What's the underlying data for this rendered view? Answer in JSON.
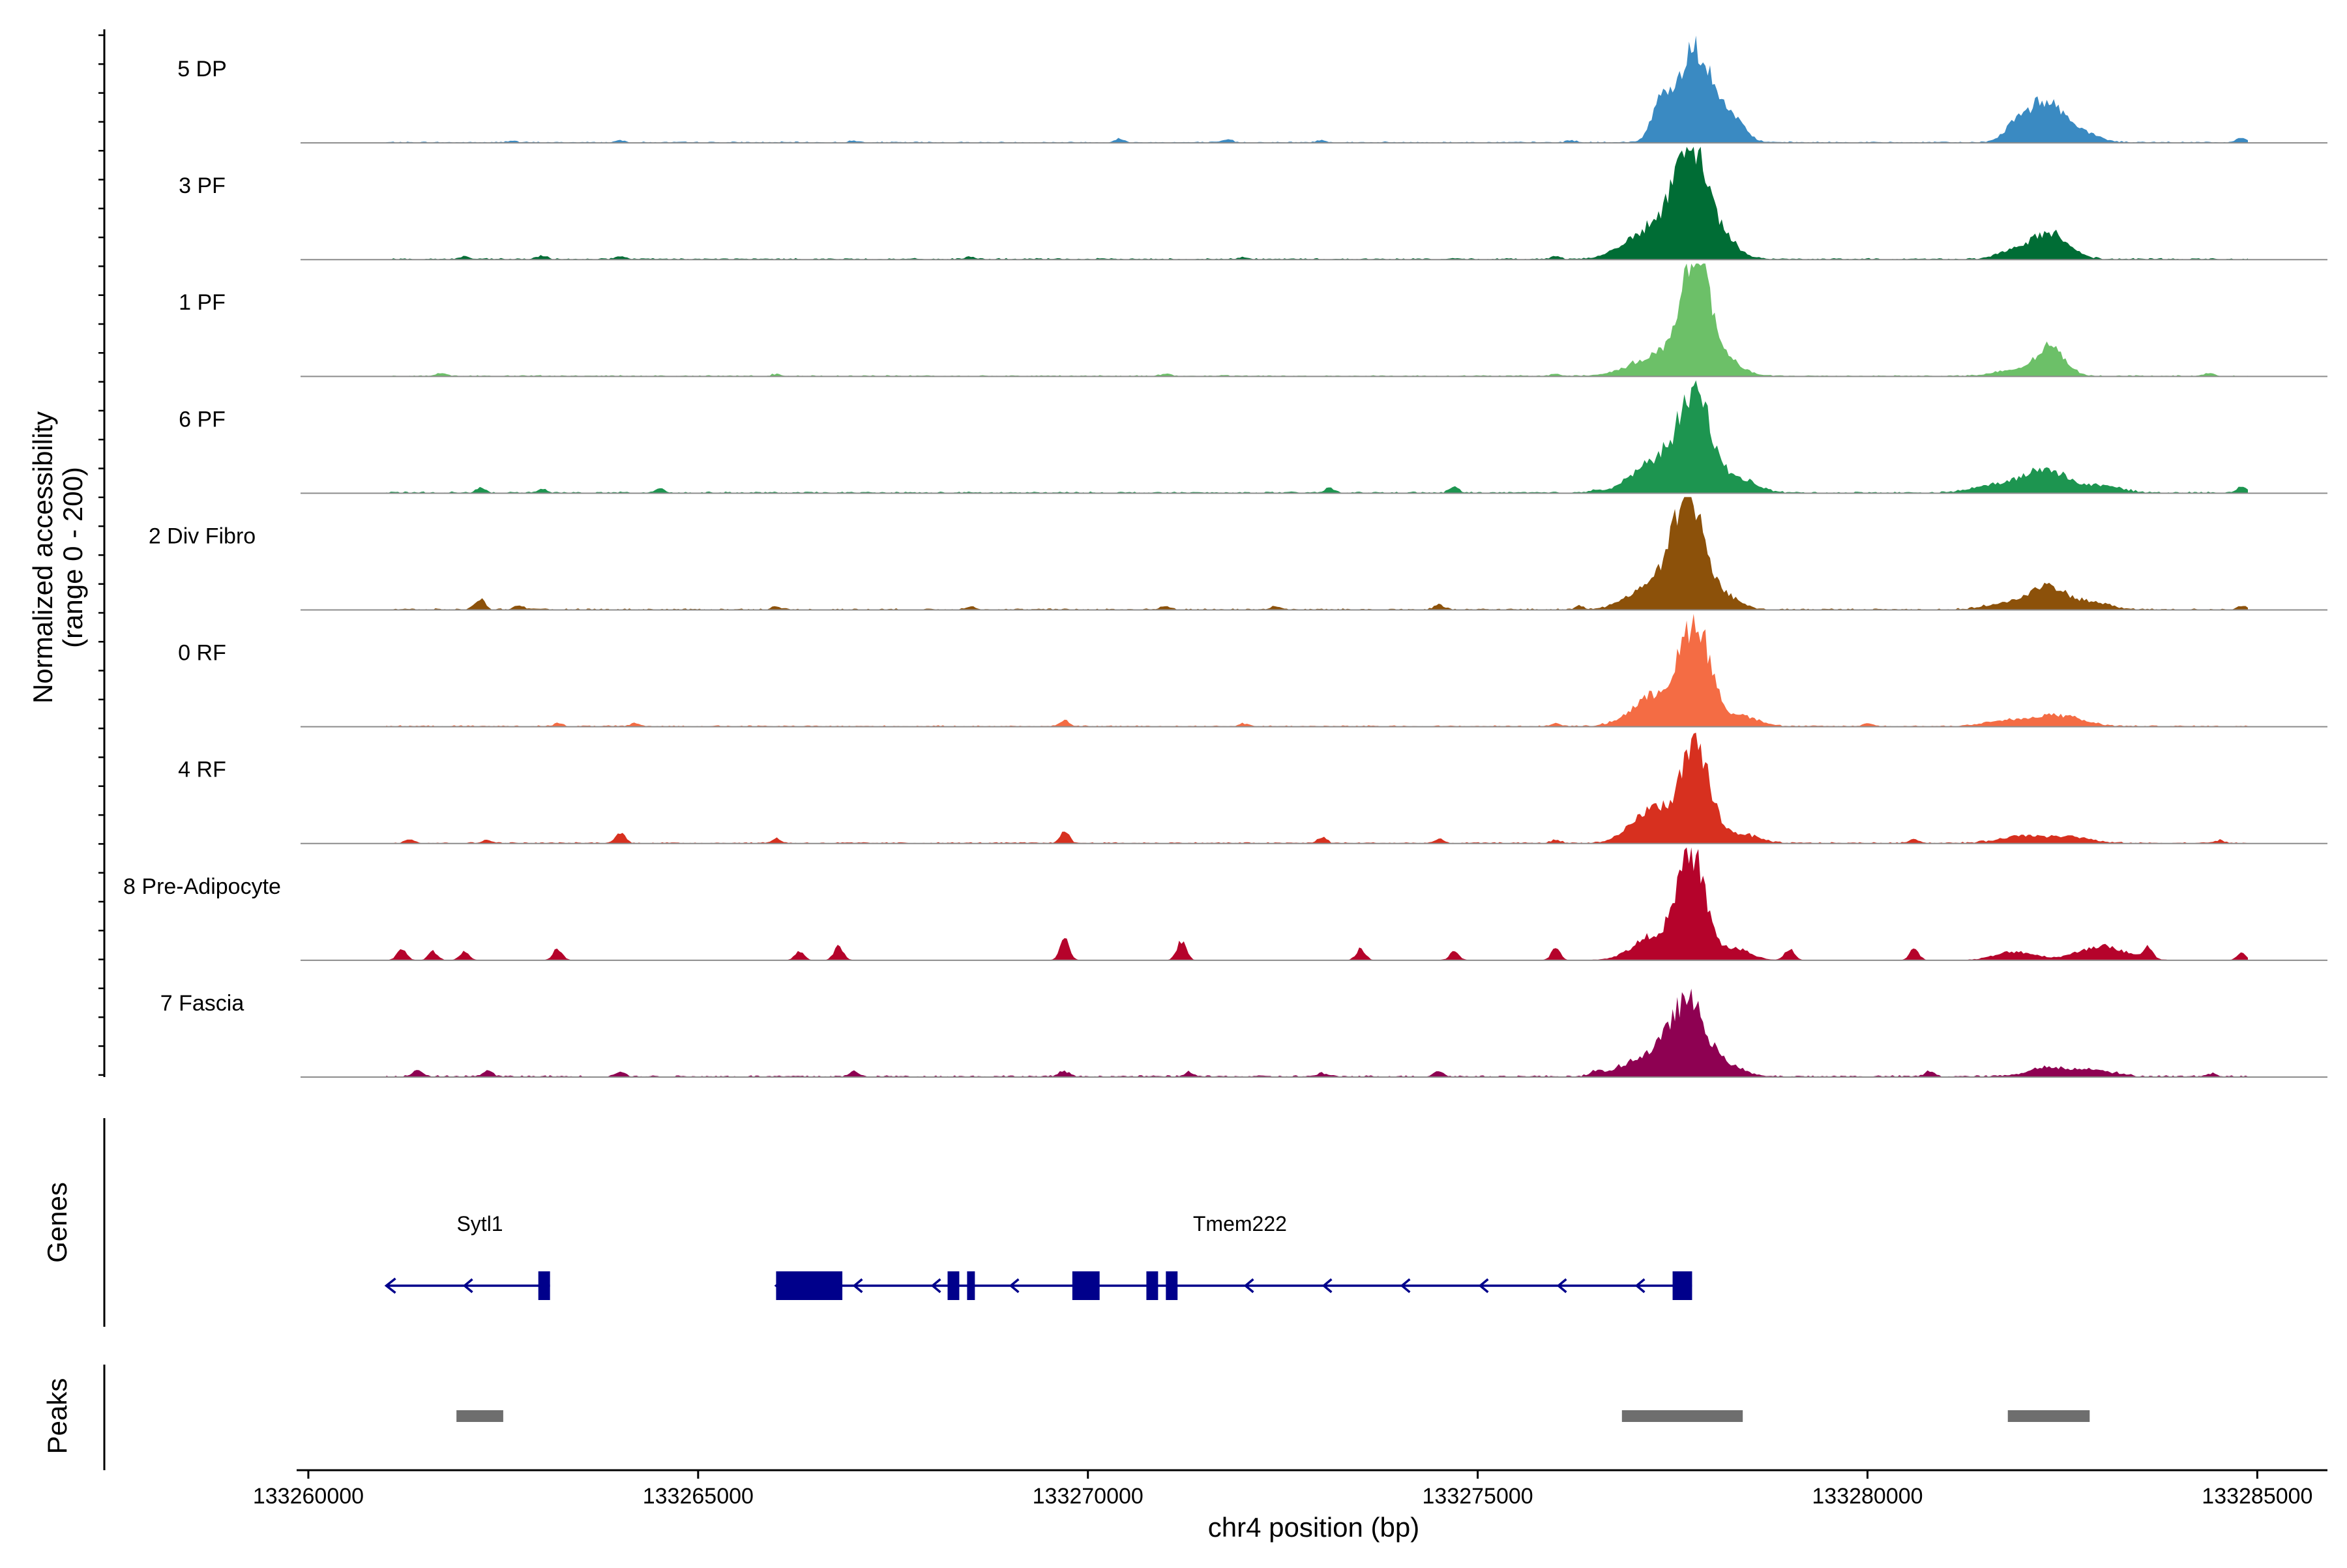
{
  "chart_data": {
    "type": "area",
    "title": "",
    "ylabel_lines": [
      "Normalized accessibility",
      "(range 0 - 200)"
    ],
    "xlabel": "chr4 position (bp)",
    "xlim": [
      133259900,
      133285900
    ],
    "ylim": [
      0,
      200
    ],
    "x_ticks": [
      133260000,
      133265000,
      133270000,
      133275000,
      133280000,
      133285000
    ],
    "x_tick_labels": [
      "133260000",
      "133265000",
      "133270000",
      "133275000",
      "133280000",
      "133285000"
    ],
    "panel_labels": {
      "genes": "Genes",
      "peaks": "Peaks"
    },
    "tracks": [
      {
        "name": "5 DP",
        "color": "#3a8ac2",
        "peaks": [
          [
            133277800,
            165,
            230
          ],
          [
            133277350,
            60,
            120
          ],
          [
            133278300,
            30,
            150
          ],
          [
            133282300,
            75,
            230
          ],
          [
            133281900,
            25,
            150
          ],
          [
            133282800,
            12,
            200
          ]
        ],
        "bumps": [
          [
            133262600,
            3
          ],
          [
            133264000,
            4
          ],
          [
            133267000,
            3
          ],
          [
            133270400,
            6
          ],
          [
            133271800,
            5
          ],
          [
            133273000,
            4
          ],
          [
            133276200,
            4
          ],
          [
            133284800,
            8
          ]
        ],
        "noise": 2.2
      },
      {
        "name": "3 PF",
        "color": "#006d35",
        "peaks": [
          [
            133277750,
            185,
            210
          ],
          [
            133277250,
            55,
            320
          ],
          [
            133278200,
            25,
            180
          ],
          [
            133282350,
            45,
            230
          ],
          [
            133281900,
            15,
            200
          ]
        ],
        "bumps": [
          [
            133262000,
            5
          ],
          [
            133263000,
            6
          ],
          [
            133264000,
            5
          ],
          [
            133268500,
            4
          ],
          [
            133272000,
            4
          ],
          [
            133276000,
            6
          ]
        ],
        "noise": 2.6
      },
      {
        "name": "1 PF",
        "color": "#6cc068",
        "peaks": [
          [
            133277800,
            205,
            190
          ],
          [
            133277300,
            35,
            330
          ],
          [
            133278300,
            18,
            160
          ],
          [
            133282350,
            50,
            180
          ],
          [
            133281900,
            10,
            250
          ]
        ],
        "bumps": [
          [
            133261700,
            5
          ],
          [
            133266000,
            3
          ],
          [
            133271000,
            4
          ],
          [
            133276000,
            4
          ],
          [
            133284400,
            5
          ]
        ],
        "noise": 2.2
      },
      {
        "name": "6 PF",
        "color": "#1d9550",
        "peaks": [
          [
            133277800,
            165,
            210
          ],
          [
            133277300,
            55,
            300
          ],
          [
            133278400,
            22,
            200
          ],
          [
            133282300,
            40,
            260
          ],
          [
            133281700,
            15,
            300
          ],
          [
            133283000,
            12,
            250
          ]
        ],
        "bumps": [
          [
            133262200,
            8
          ],
          [
            133263000,
            6
          ],
          [
            133264500,
            8
          ],
          [
            133273100,
            9
          ],
          [
            133274700,
            10
          ],
          [
            133276500,
            5
          ],
          [
            133284800,
            12
          ]
        ],
        "noise": 2.6
      },
      {
        "name": "2 Div Fibro",
        "color": "#8c510a",
        "peaks": [
          [
            133277700,
            200,
            200
          ],
          [
            133277200,
            40,
            280
          ],
          [
            133278200,
            20,
            180
          ],
          [
            133282300,
            40,
            200
          ],
          [
            133281800,
            12,
            250
          ],
          [
            133282800,
            15,
            250
          ]
        ],
        "bumps": [
          [
            133262200,
            20
          ],
          [
            133262700,
            8
          ],
          [
            133266000,
            5
          ],
          [
            133268500,
            6
          ],
          [
            133271000,
            6
          ],
          [
            133272400,
            6
          ],
          [
            133274500,
            8
          ],
          [
            133276300,
            5
          ],
          [
            133284800,
            6
          ]
        ],
        "noise": 2.6
      },
      {
        "name": "0 RF",
        "color": "#f46c44",
        "peaks": [
          [
            133277800,
            175,
            190
          ],
          [
            133277300,
            55,
            300
          ],
          [
            133278400,
            18,
            200
          ],
          [
            133282400,
            20,
            320
          ],
          [
            133281700,
            8,
            250
          ]
        ],
        "bumps": [
          [
            133263200,
            5
          ],
          [
            133264200,
            5
          ],
          [
            133269700,
            10
          ],
          [
            133272000,
            5
          ],
          [
            133276000,
            5
          ],
          [
            133280000,
            5
          ]
        ],
        "noise": 2.4
      },
      {
        "name": "4 RF",
        "color": "#d7301f",
        "peaks": [
          [
            133277800,
            160,
            190
          ],
          [
            133277250,
            60,
            260
          ],
          [
            133278400,
            15,
            200
          ],
          [
            133282000,
            12,
            300
          ],
          [
            133282600,
            10,
            250
          ]
        ],
        "bumps": [
          [
            133261300,
            8
          ],
          [
            133262300,
            6
          ],
          [
            133264000,
            18
          ],
          [
            133266000,
            8
          ],
          [
            133269700,
            20
          ],
          [
            133273000,
            10
          ],
          [
            133274500,
            6
          ],
          [
            133276000,
            6
          ],
          [
            133280600,
            8
          ],
          [
            133284500,
            5
          ]
        ],
        "noise": 2.4
      },
      {
        "name": "8 Pre-Adipocyte",
        "color": "#b5032b",
        "peaks": [
          [
            133277750,
            180,
            170
          ],
          [
            133277300,
            45,
            280
          ],
          [
            133278300,
            20,
            200
          ],
          [
            133281900,
            15,
            250
          ],
          [
            133283000,
            25,
            300
          ]
        ],
        "bumps": [
          [
            133261200,
            20
          ],
          [
            133261600,
            15
          ],
          [
            133262000,
            15
          ],
          [
            133263200,
            20
          ],
          [
            133266300,
            15
          ],
          [
            133266800,
            25
          ],
          [
            133269700,
            40
          ],
          [
            133271200,
            35
          ],
          [
            133273500,
            20
          ],
          [
            133274700,
            15
          ],
          [
            133276000,
            20
          ],
          [
            133279000,
            20
          ],
          [
            133280600,
            20
          ],
          [
            133283600,
            22
          ],
          [
            133284800,
            12
          ]
        ],
        "noise": 0.8
      },
      {
        "name": "7 Fascia",
        "color": "#8e0152",
        "peaks": [
          [
            133277700,
            125,
            220
          ],
          [
            133277200,
            35,
            320
          ],
          [
            133278200,
            18,
            200
          ],
          [
            133282300,
            15,
            250
          ],
          [
            133282900,
            12,
            250
          ]
        ],
        "bumps": [
          [
            133261400,
            10
          ],
          [
            133262300,
            10
          ],
          [
            133264000,
            8
          ],
          [
            133267000,
            8
          ],
          [
            133269700,
            10
          ],
          [
            133271300,
            8
          ],
          [
            133273000,
            6
          ],
          [
            133274500,
            10
          ],
          [
            133276500,
            8
          ],
          [
            133280800,
            10
          ],
          [
            133284400,
            6
          ]
        ],
        "noise": 3.0
      }
    ],
    "genes": [
      {
        "name": "Sytl1",
        "start": 133261000,
        "end": 133263100,
        "strand": "-",
        "exons": [
          [
            133262950,
            133263100
          ]
        ],
        "label_x": 133262200
      },
      {
        "name": "Tmem222",
        "start": 133266000,
        "end": 133277750,
        "strand": "-",
        "exons": [
          [
            133266000,
            133266850
          ],
          [
            133268200,
            133268350
          ],
          [
            133268450,
            133268550
          ],
          [
            133269800,
            133270150
          ],
          [
            133270750,
            133270900
          ],
          [
            133271000,
            133271150
          ],
          [
            133277500,
            133277750
          ]
        ],
        "label_x": 133271950
      }
    ],
    "peak_regions": [
      [
        133261900,
        133262500
      ],
      [
        133276850,
        133278400
      ],
      [
        133281800,
        133282850
      ]
    ]
  }
}
